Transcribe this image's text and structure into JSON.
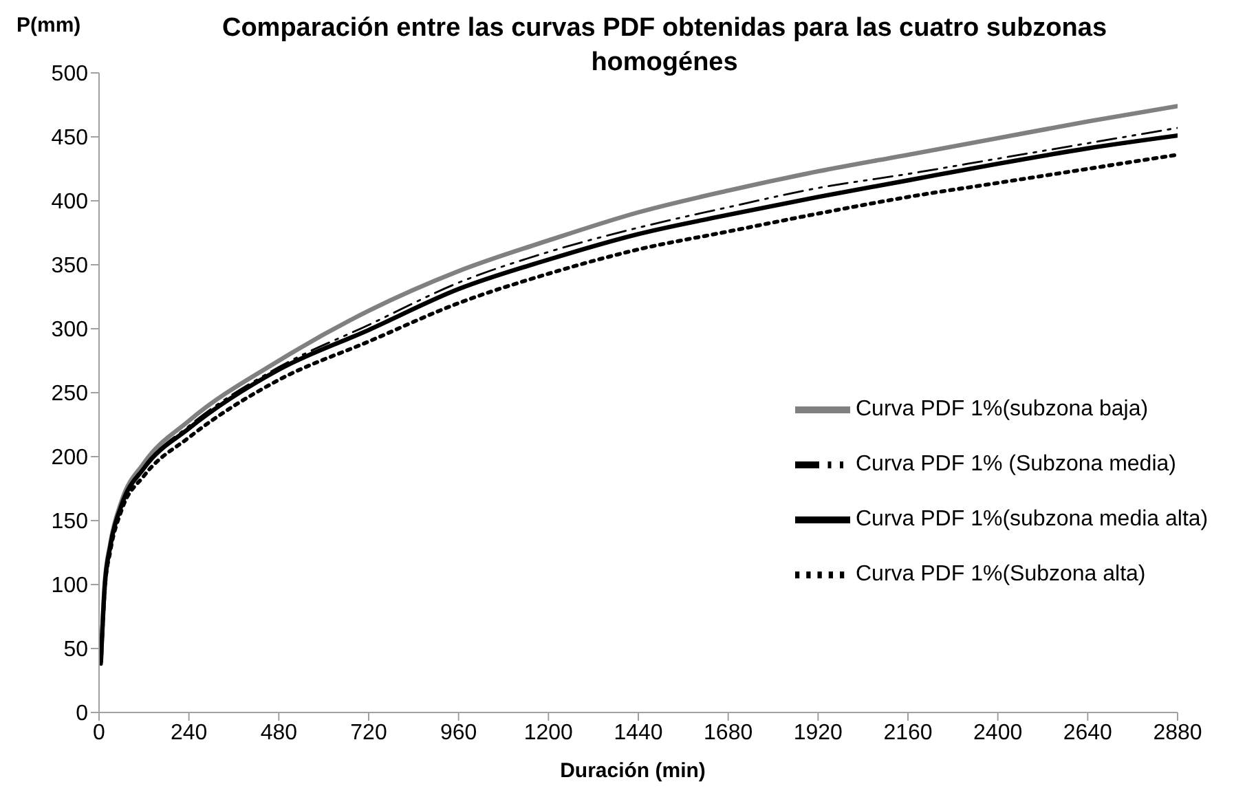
{
  "chart_data": {
    "type": "line",
    "title": "Comparación entre las curvas PDF obtenidas para las cuatro subzonas homogénes",
    "xlabel": "Duración (min)",
    "ylabel": "P(mm)",
    "x": [
      5,
      15,
      30,
      60,
      120,
      240,
      480,
      720,
      960,
      1200,
      1440,
      1680,
      1920,
      2160,
      2400,
      2640,
      2880
    ],
    "series": [
      {
        "name": "Curva PDF 1%(subzona baja)",
        "color": "#808080",
        "line_style": "solid",
        "values": [
          40,
          100,
          132,
          165,
          195,
          228,
          275,
          314,
          345,
          369,
          391,
          408,
          423,
          436,
          449,
          462,
          474
        ]
      },
      {
        "name": "Curva PDF 1% (Subzona media)",
        "color": "#000000",
        "line_style": "dashed",
        "values": [
          40,
          98,
          130,
          163,
          192,
          224,
          270,
          303,
          336,
          360,
          379,
          395,
          410,
          421,
          433,
          445,
          457
        ]
      },
      {
        "name": "Curva PDF 1%(subzona media alta)",
        "color": "#000000",
        "line_style": "solid",
        "values": [
          40,
          98,
          130,
          162,
          191,
          222,
          268,
          299,
          331,
          354,
          374,
          389,
          403,
          416,
          429,
          441,
          451
        ]
      },
      {
        "name": "Curva PDF 1%(Subzona alta)",
        "color": "#000000",
        "line_style": "dotted",
        "values": [
          38,
          95,
          126,
          158,
          185,
          215,
          260,
          290,
          320,
          343,
          362,
          376,
          390,
          403,
          414,
          425,
          436
        ]
      }
    ],
    "xlim": [
      0,
      2880
    ],
    "xticks": [
      0,
      240,
      480,
      720,
      960,
      1200,
      1440,
      1680,
      1920,
      2160,
      2400,
      2640,
      2880
    ],
    "ylim": [
      0,
      500
    ],
    "yticks": [
      0,
      50,
      100,
      150,
      200,
      250,
      300,
      350,
      400,
      450,
      500
    ],
    "grid": false,
    "legend": "bottom right",
    "marker": "none"
  }
}
